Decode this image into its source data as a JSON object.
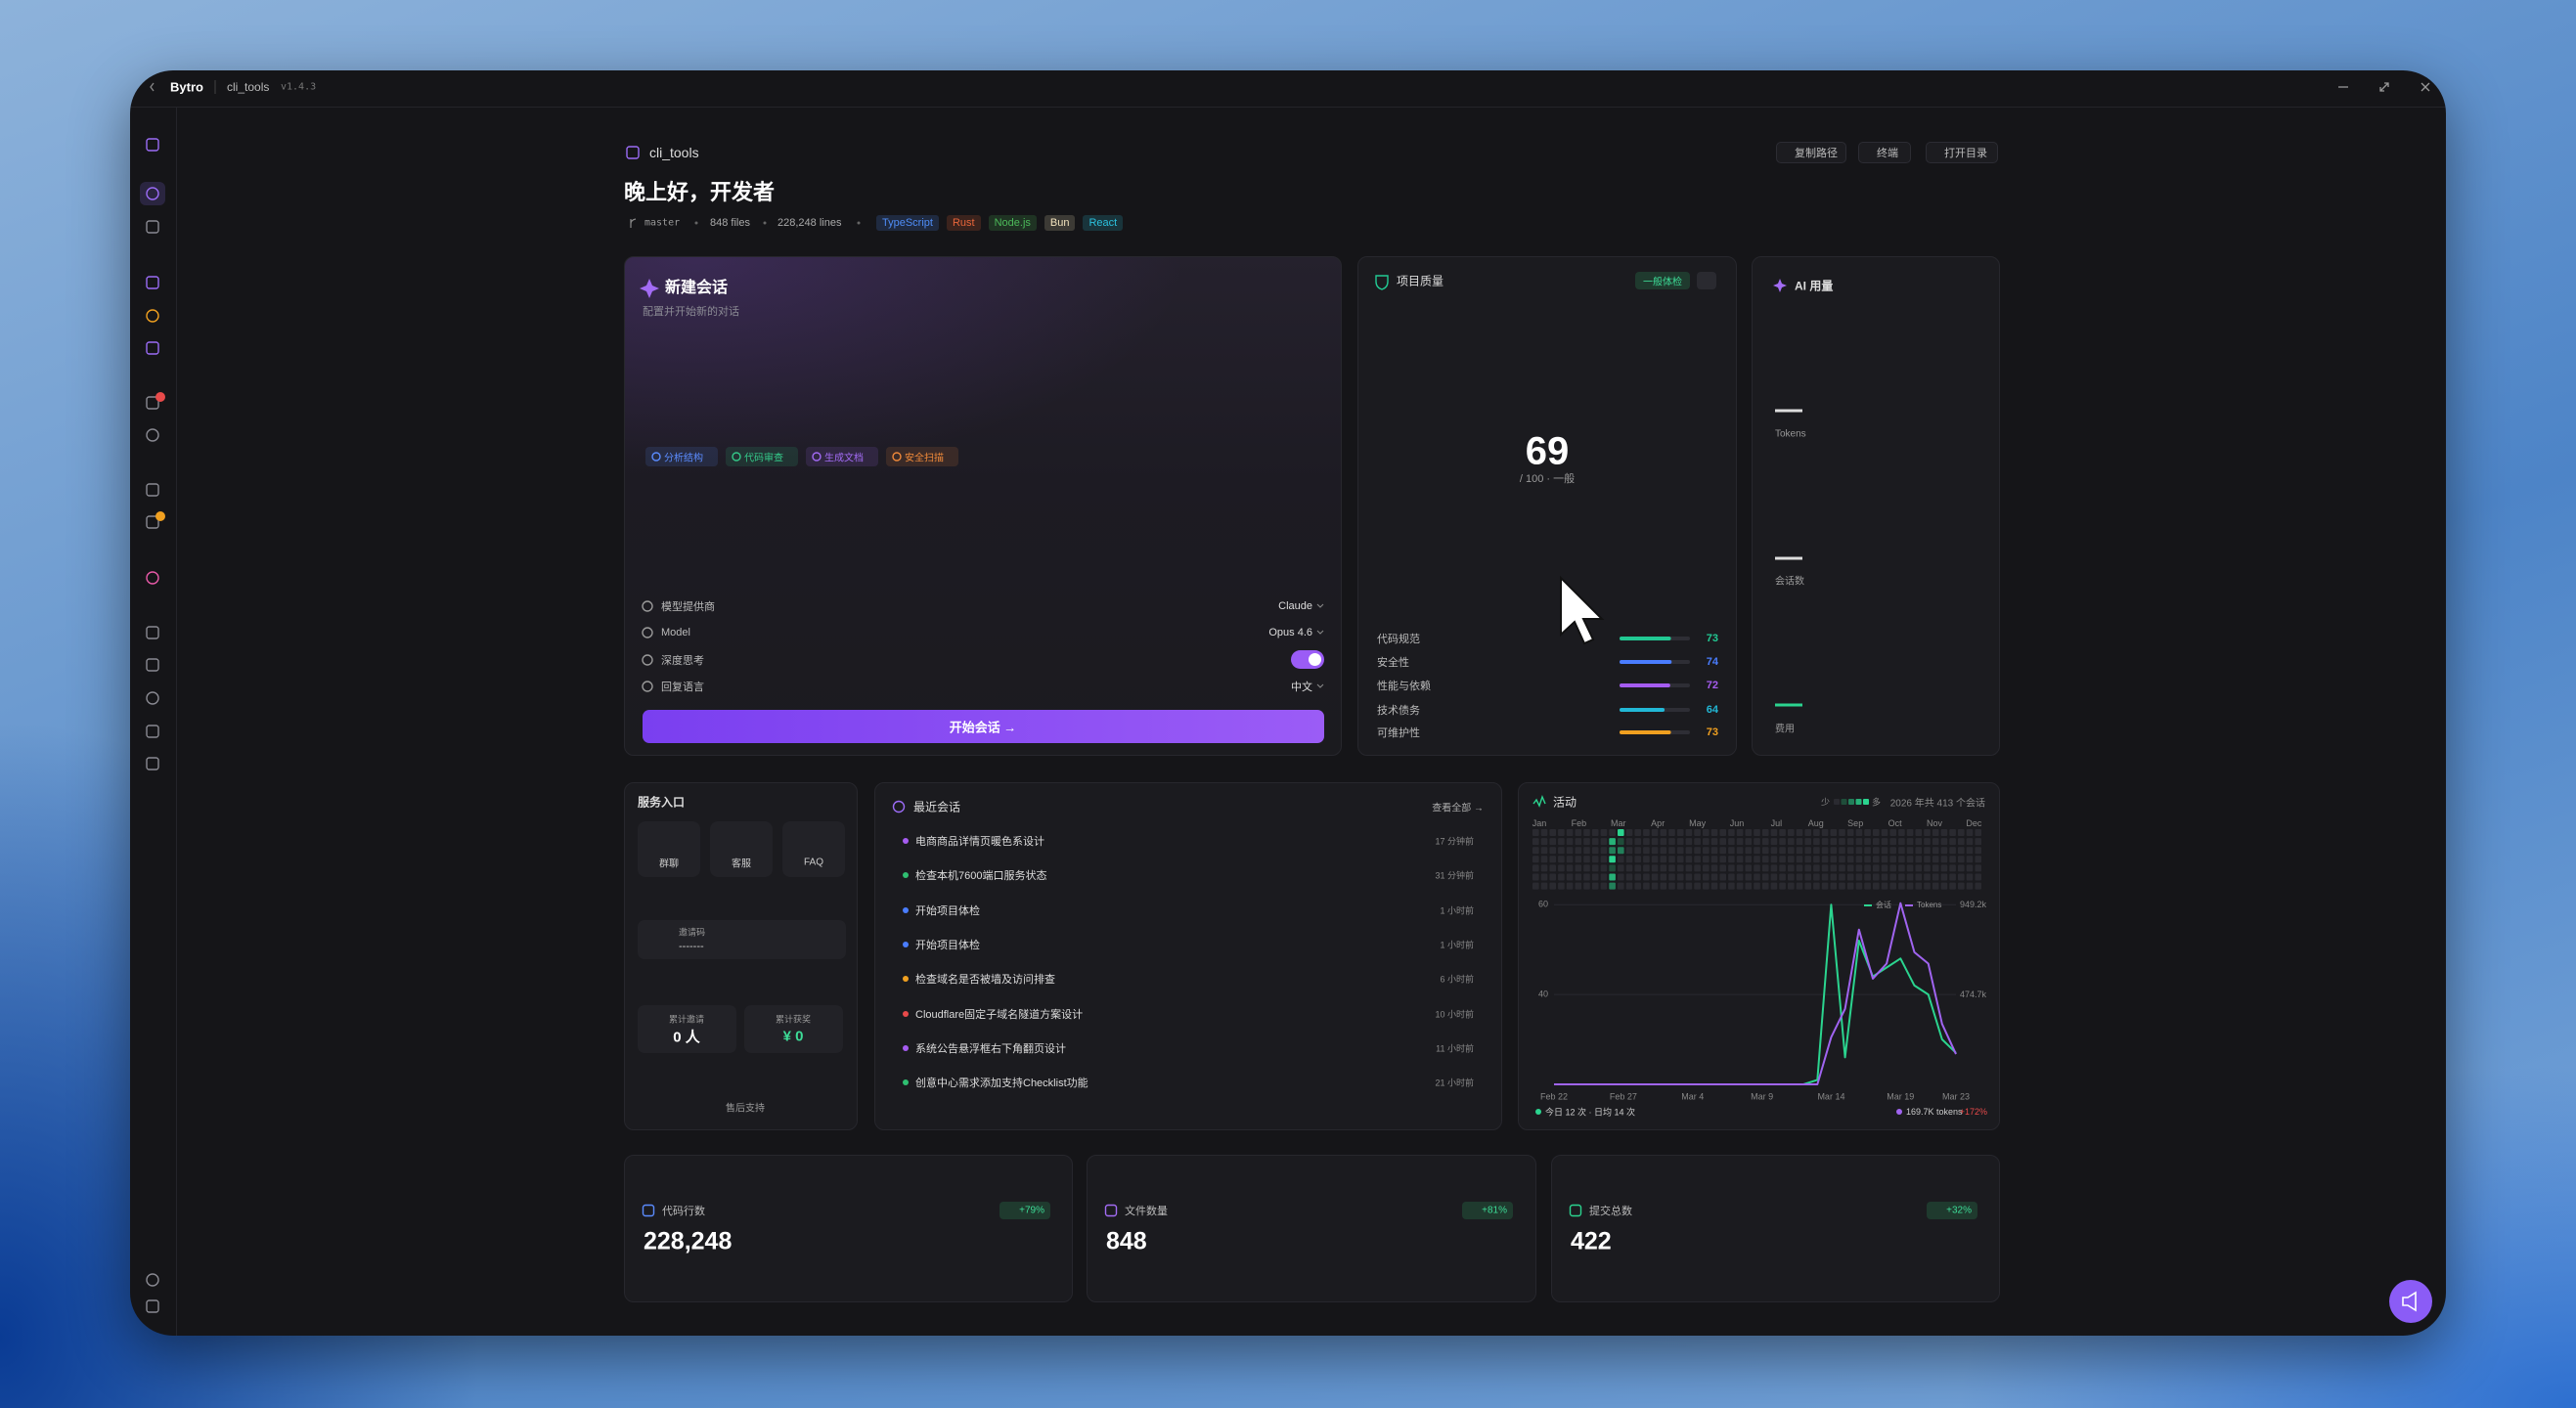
{
  "window": {
    "app": "Bytro",
    "project": "cli_tools",
    "version": "v1.4.3"
  },
  "header": {
    "project": "cli_tools",
    "greeting": "晚上好，开发者",
    "branch": "master",
    "files": "848 files",
    "lines": "228,248 lines",
    "tags": [
      {
        "name": "TypeScript",
        "color": "#4f8df7"
      },
      {
        "name": "Rust",
        "color": "#e8653a"
      },
      {
        "name": "Node.js",
        "color": "#4cba5a"
      },
      {
        "name": "Bun",
        "color": "#f1e2bd"
      },
      {
        "name": "React",
        "color": "#2bc0dc"
      }
    ],
    "actions": [
      "复制路径",
      "终端",
      "打开目录"
    ]
  },
  "new_session": {
    "title": "新建会话",
    "subtitle": "配置并开始新的对话",
    "quick_actions": [
      {
        "name": "分析结构",
        "color": "#5b8cff"
      },
      {
        "name": "代码审查",
        "color": "#35c98a"
      },
      {
        "name": "生成文档",
        "color": "#a36cf5"
      },
      {
        "name": "安全扫描",
        "color": "#f08a3a"
      }
    ],
    "settings": [
      {
        "label": "模型提供商",
        "value": "Claude"
      },
      {
        "label": "Model",
        "value": "Opus 4.6"
      },
      {
        "label": "深度思考"
      },
      {
        "label": "回复语言",
        "value": "中文"
      }
    ],
    "start_button": "开始会话 →"
  },
  "quality": {
    "title": "项目质量",
    "badge": "一般体检",
    "score": 69,
    "score_note": "/ 100 · 一般",
    "metrics": [
      {
        "label": "代码规范",
        "value": 73,
        "color": "#22c993"
      },
      {
        "label": "安全性",
        "value": 74,
        "color": "#4a7dff"
      },
      {
        "label": "性能与依赖",
        "value": 72,
        "color": "#a55cf0"
      },
      {
        "label": "技术债务",
        "value": 64,
        "color": "#22b8d6"
      },
      {
        "label": "可维护性",
        "value": 73,
        "color": "#f0a020"
      }
    ]
  },
  "ai_usage": {
    "title": "AI 用量",
    "items": [
      "Tokens",
      "会话数",
      "费用"
    ]
  },
  "services": {
    "title": "服务入口",
    "links": [
      {
        "name": "群聊",
        "color": "#2fbf71"
      },
      {
        "name": "客服",
        "color": "#5b7cf5"
      },
      {
        "name": "FAQ",
        "color": "#e9a23b"
      }
    ],
    "invite_label": "邀请码",
    "invite_code": "-------",
    "invited_label": "累计邀请",
    "invited": "0 人",
    "reward_label": "累计获奖",
    "reward": "¥ 0",
    "support": "售后支持"
  },
  "recent": {
    "title": "最近会话",
    "view_all": "查看全部 →",
    "items": [
      {
        "title": "电商商品详情页暖色系设计",
        "time": "17 分钟前",
        "color": "#a55cf0"
      },
      {
        "title": "检查本机7600端口服务状态",
        "time": "31 分钟前",
        "color": "#2fbf71"
      },
      {
        "title": "开始项目体检",
        "time": "1 小时前",
        "color": "#4a7dff"
      },
      {
        "title": "开始项目体检",
        "time": "1 小时前",
        "color": "#4a7dff"
      },
      {
        "title": "检查域名是否被墙及访问排查",
        "time": "6 小时前",
        "color": "#f0a020"
      },
      {
        "title": "Cloudflare固定子域名隧道方案设计",
        "time": "10 小时前",
        "color": "#e84a4a"
      },
      {
        "title": "系统公告悬浮框右下角翻页设计",
        "time": "11 小时前",
        "color": "#a55cf0"
      },
      {
        "title": "创意中心需求添加支持Checklist功能",
        "time": "21 小时前",
        "color": "#2fbf71"
      }
    ]
  },
  "activity": {
    "title": "活动",
    "less": "少",
    "more": "多",
    "summary": "2026 年共 413 个会话",
    "months": [
      "Jan",
      "Feb",
      "Mar",
      "Apr",
      "May",
      "Jun",
      "Jul",
      "Aug",
      "Sep",
      "Oct",
      "Nov",
      "Dec"
    ],
    "today": "今日 12 次 · 日均 14 次",
    "tokens": "169.7K tokens",
    "change": "+172%"
  },
  "chart_data": {
    "type": "line",
    "categories": [
      "Feb 22",
      null,
      null,
      null,
      null,
      "Feb 27",
      null,
      null,
      null,
      null,
      "Mar 4",
      null,
      null,
      null,
      null,
      "Mar 9",
      null,
      null,
      null,
      null,
      "Mar 14",
      null,
      null,
      null,
      null,
      "Mar 19",
      null,
      null,
      null,
      "Mar 23"
    ],
    "series": [
      {
        "name": "会话",
        "color": "#2bd48f",
        "values": [
          20,
          20,
          20,
          20,
          20,
          20,
          20,
          20,
          20,
          20,
          20,
          20,
          20,
          20,
          20,
          20,
          20,
          20,
          20,
          21,
          60,
          26,
          52,
          44,
          46,
          48,
          42,
          40,
          30,
          27
        ]
      },
      {
        "name": "Tokens",
        "color": "#a064f0",
        "axis": "y2",
        "values": [
          0,
          0,
          0,
          0,
          0,
          0,
          0,
          0,
          0,
          0,
          0,
          0,
          0,
          0,
          0,
          0,
          0,
          0,
          0,
          0,
          250000,
          400000,
          820000,
          560000,
          640000,
          960000,
          700000,
          640000,
          320000,
          160000
        ]
      }
    ],
    "ylim": [
      20,
      62
    ],
    "yticks": [
      40,
      60
    ],
    "y2lim": [
      0,
      1000000
    ],
    "y2ticks": [
      {
        "value": 474700,
        "label": "474.7k"
      },
      {
        "value": 949200,
        "label": "949.2k"
      }
    ],
    "grid": true
  },
  "stats": [
    {
      "label": "代码行数",
      "value": "228,248",
      "change": "+79%"
    },
    {
      "label": "文件数量",
      "value": "848",
      "change": "+81%"
    },
    {
      "label": "提交总数",
      "value": "422",
      "change": "+32%"
    }
  ]
}
